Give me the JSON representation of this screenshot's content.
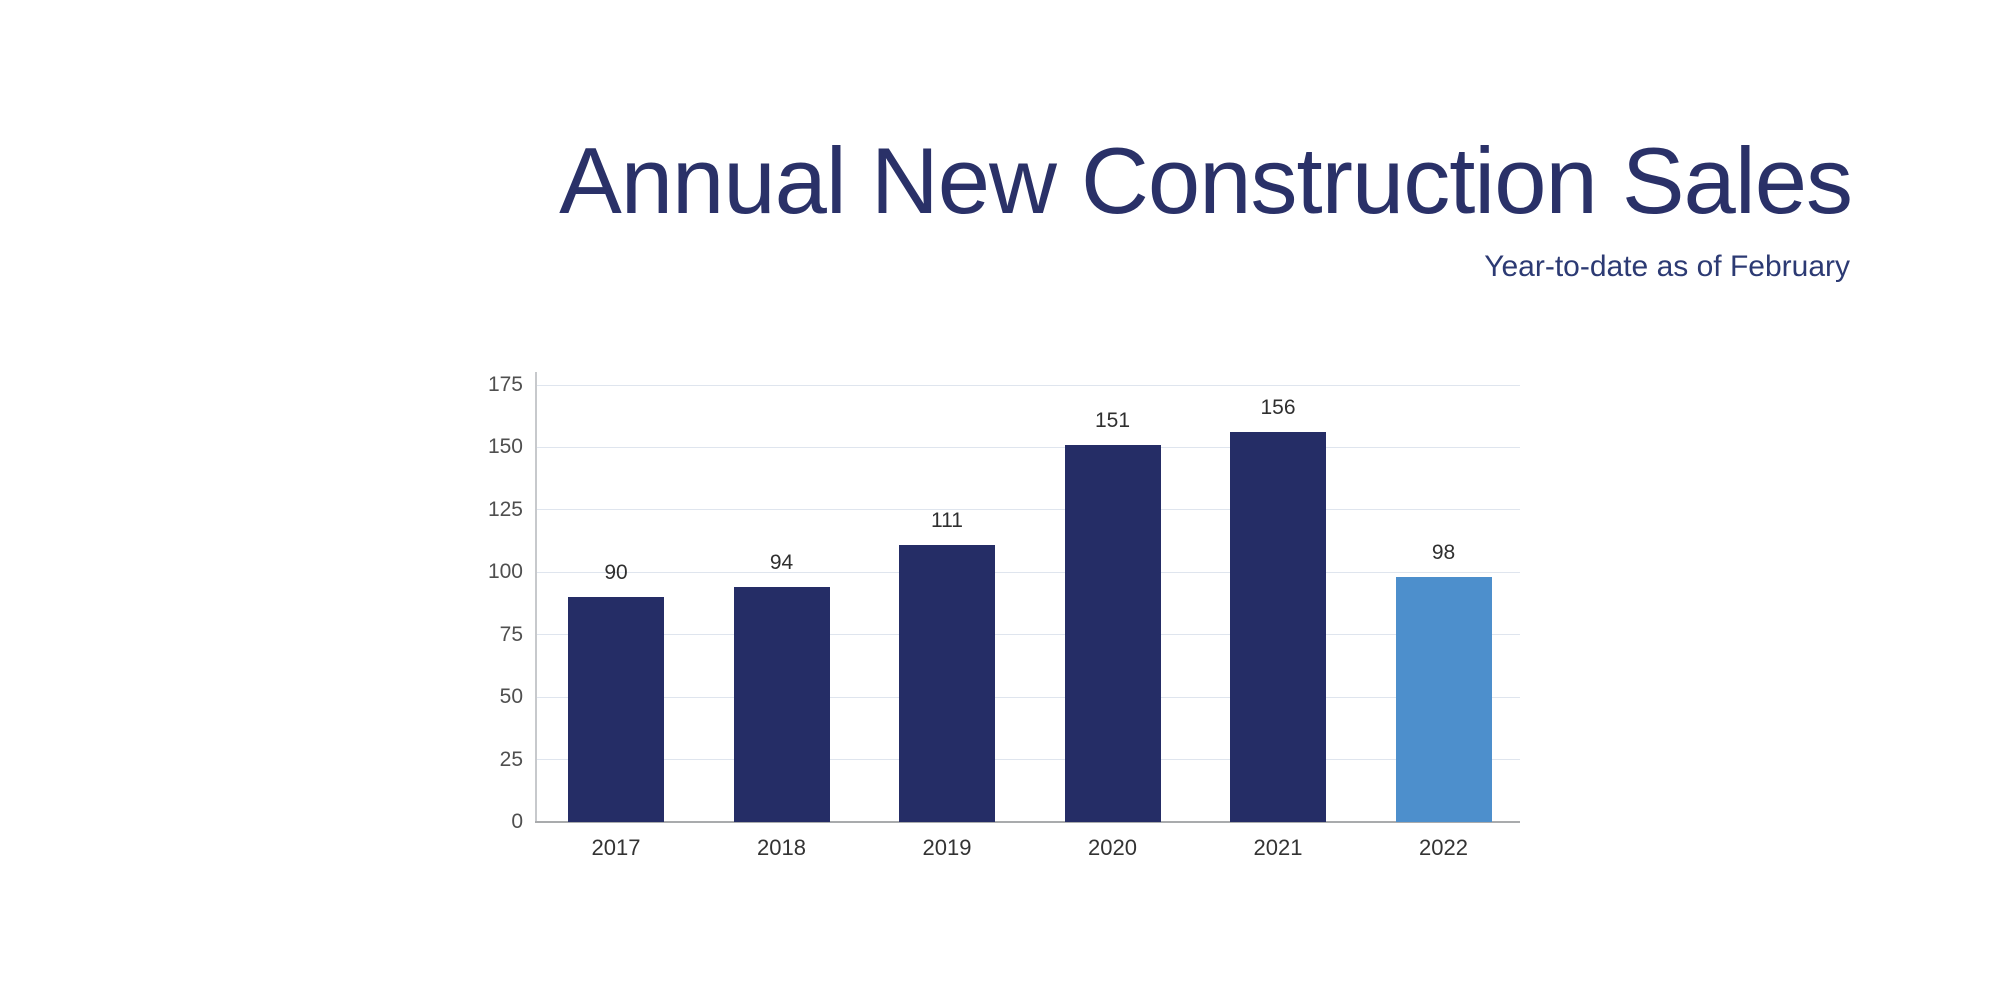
{
  "header": {
    "title": "Annual New Construction Sales",
    "subtitle": "Year-to-date as of February"
  },
  "chart_data": {
    "type": "bar",
    "title": "Annual New Construction Sales",
    "subtitle": "Year-to-date as of February",
    "categories": [
      "2017",
      "2018",
      "2019",
      "2020",
      "2021",
      "2022"
    ],
    "values": [
      90,
      94,
      111,
      151,
      156,
      98
    ],
    "bar_labels": [
      "90",
      "94",
      "111",
      "151",
      "156",
      "98"
    ],
    "highlight_index": 5,
    "highlighted_category": "2022",
    "y_ticks": [
      0,
      25,
      50,
      75,
      100,
      125,
      150,
      175
    ],
    "ylim": [
      0,
      175
    ],
    "xlabel": "",
    "ylabel": "",
    "grid": "horizontal",
    "legend": "none",
    "colors": {
      "background": "#ffffff",
      "bar_default": "#252d66",
      "bar_highlight": "#4d8fcc",
      "title_text": "#2a3168",
      "subtitle_text": "#2c3a73",
      "value_label_text": "#2f2f2f",
      "x_tick_label_text": "#333333",
      "y_tick_label_text": "#4f4f4f",
      "gridline": "#dfe5ee",
      "axis_line": "#c7c9cc",
      "baseline": "#a9abad"
    }
  }
}
